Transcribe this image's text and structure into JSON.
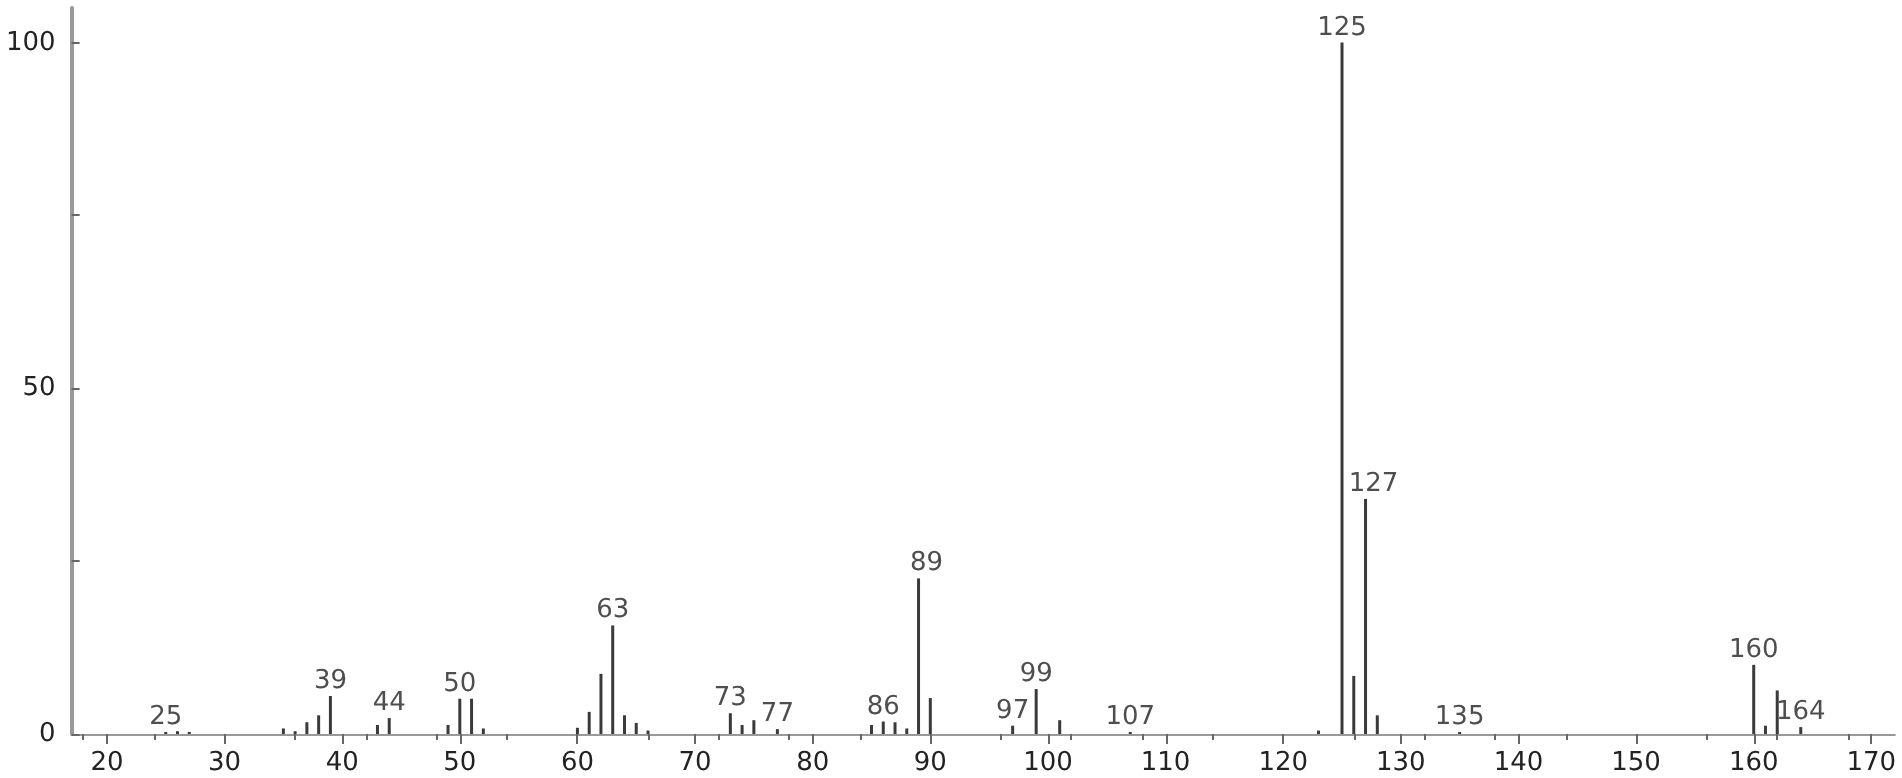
{
  "chart_data": {
    "type": "bar",
    "x": [
      25,
      26,
      27,
      35,
      36,
      37,
      38,
      39,
      43,
      44,
      49,
      50,
      51,
      52,
      60,
      61,
      62,
      63,
      64,
      65,
      66,
      73,
      74,
      75,
      77,
      85,
      86,
      87,
      88,
      89,
      90,
      97,
      99,
      101,
      107,
      123,
      125,
      126,
      127,
      128,
      135,
      160,
      161,
      162,
      164
    ],
    "series": [
      {
        "color": "#3a3a3a",
        "values": [
          0.3,
          0.4,
          0.3,
          0.8,
          0.4,
          1.7,
          2.7,
          5.5,
          1.3,
          2.3,
          1.3,
          5.1,
          5.1,
          0.8,
          0.9,
          3.2,
          8.7,
          15.7,
          2.7,
          1.6,
          0.5,
          3,
          1.3,
          2,
          0.7,
          1.3,
          1.8,
          1.7,
          0.8,
          22.5,
          5.2,
          1.2,
          6.5,
          2,
          0.3,
          0.5,
          100,
          8.4,
          34,
          2.7,
          0.3,
          10,
          1.2,
          6.3,
          1
        ]
      }
    ],
    "xlim": [
      17,
      172
    ],
    "xticks": [
      20,
      30,
      40,
      50,
      60,
      70,
      80,
      90,
      100,
      110,
      120,
      130,
      140,
      150,
      160,
      170
    ],
    "ylim": [
      0,
      105
    ],
    "yticks": [
      0,
      {
        "value": 25,
        "label": null
      },
      50,
      {
        "value": 75,
        "label": null
      },
      100
    ],
    "annotations": [
      {
        "text": "25",
        "x": 25,
        "y": 0.3
      },
      {
        "text": "39",
        "x": 39,
        "y": 5.5
      },
      {
        "text": "44",
        "x": 44,
        "y": 2.3
      },
      {
        "text": "50",
        "x": 50,
        "y": 5.1
      },
      {
        "text": "63",
        "x": 63,
        "y": 15.7
      },
      {
        "text": "73",
        "x": 73,
        "y": 3
      },
      {
        "text": "77",
        "x": 77,
        "y": 0.7
      },
      {
        "text": "86",
        "x": 86,
        "y": 1.8
      },
      {
        "text": "89",
        "x": 89,
        "y": 22.5
      },
      {
        "text": "97",
        "x": 97,
        "y": 1.2
      },
      {
        "text": "99",
        "x": 99,
        "y": 6.5
      },
      {
        "text": "107",
        "x": 107,
        "y": 0.3
      },
      {
        "text": "125",
        "x": 125,
        "y": 100
      },
      {
        "text": "127",
        "x": 127,
        "y": 34
      },
      {
        "text": "135",
        "x": 135,
        "y": 0.3
      },
      {
        "text": "160",
        "x": 160,
        "y": 10
      },
      {
        "text": "164",
        "x": 164,
        "y": 1
      }
    ],
    "grid": false
  }
}
